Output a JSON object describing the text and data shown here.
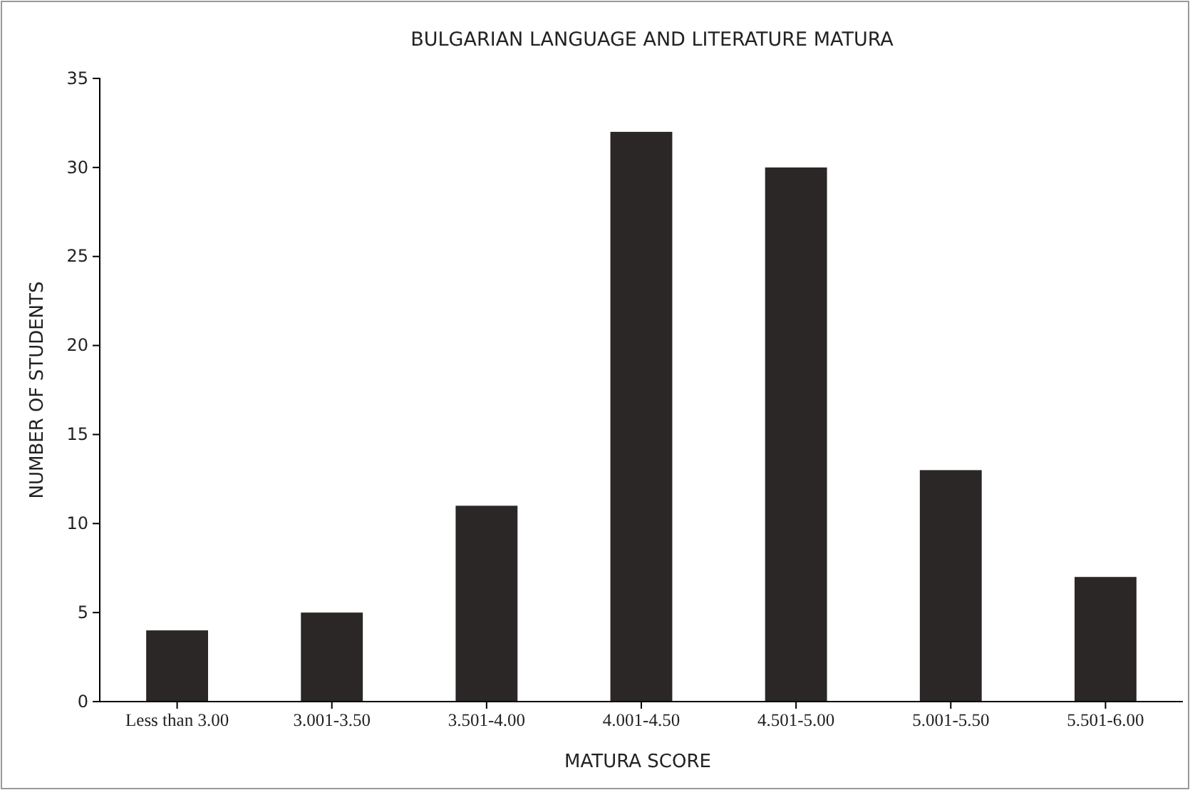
{
  "chart_data": {
    "type": "bar",
    "title": "BULGARIAN LANGUAGE AND LITERATURE MATURA",
    "xlabel": "MATURA SCORE",
    "ylabel": "NUMBER OF STUDENTS",
    "categories": [
      "Less than 3.00",
      "3.001-3.50",
      "3.501-4.00",
      "4.001-4.50",
      "4.501-5.00",
      "5.001-5.50",
      "5.501-6.00"
    ],
    "values": [
      4,
      5,
      11,
      32,
      30,
      13,
      7
    ],
    "color": "#2b2727",
    "ylim": [
      0,
      35
    ],
    "yticks": [
      0,
      5,
      10,
      15,
      20,
      25,
      30,
      35
    ]
  }
}
